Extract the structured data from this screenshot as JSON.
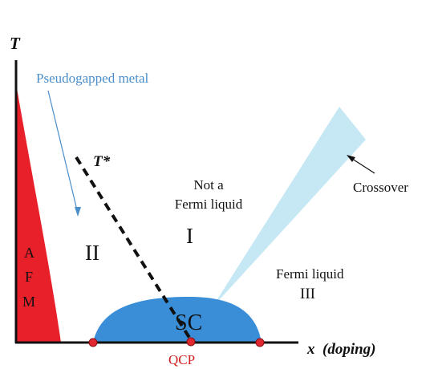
{
  "axes": {
    "y_label": "T",
    "x_label": "x  (doping)"
  },
  "labels": {
    "pseudogap_metal": "Pseudogapped metal",
    "t_star": "T*",
    "not_fermi_line1": "Not a",
    "not_fermi_line2": "Fermi liquid",
    "region_I": "I",
    "region_II": "II",
    "fermi_liquid": "Fermi liquid",
    "region_III": "III",
    "crossover": "Crossover",
    "sc": "SC",
    "qcp": "QCP",
    "afm_a": "A",
    "afm_f": "F",
    "afm_m": "M"
  },
  "colors": {
    "afm_fill": "#e8202a",
    "sc_fill": "#3a8ed8",
    "crossover_fill": "#c5e8f4",
    "pseudogap_text": "#4a8ecb",
    "qcp_text": "#d02020",
    "dot_fill": "#e02830",
    "axis": "#111111"
  }
}
